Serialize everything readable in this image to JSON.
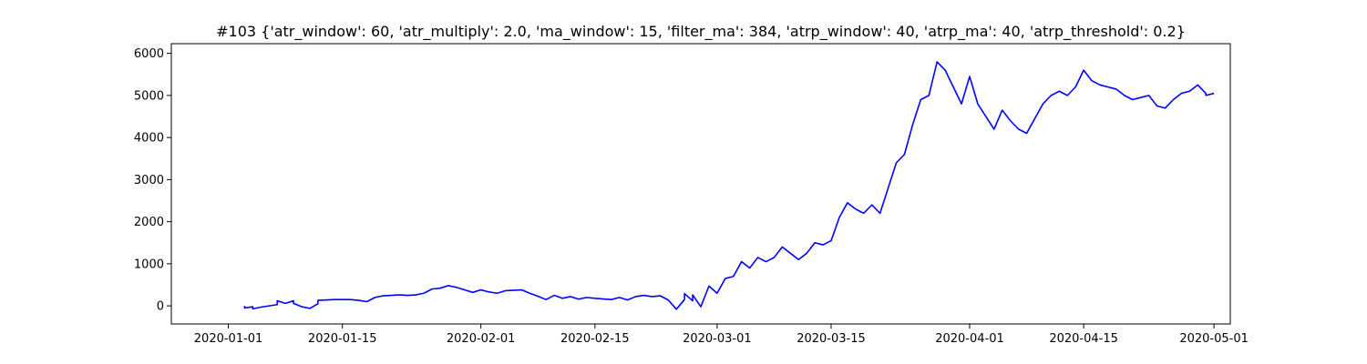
{
  "chart_data": {
    "type": "line",
    "title": "#103 {'atr_window': 60, 'atr_multiply': 2.0, 'ma_window': 15, 'filter_ma': 384, 'atrp_window': 40, 'atrp_ma': 40, 'atrp_threshold': 0.2}",
    "xlabel": "",
    "ylabel": "",
    "x_type": "date",
    "xlim": [
      "2019-12-25",
      "2020-05-03"
    ],
    "ylim": [
      -430,
      6230
    ],
    "grid": false,
    "x_ticks": [
      "2020-01-01",
      "2020-01-15",
      "2020-02-01",
      "2020-02-15",
      "2020-03-01",
      "2020-03-15",
      "2020-04-01",
      "2020-04-15",
      "2020-05-01"
    ],
    "y_ticks": [
      0,
      1000,
      2000,
      3000,
      4000,
      5000,
      6000
    ],
    "line_color": "#0000ff",
    "series": [
      {
        "points": [
          [
            "2020-01-03",
            0
          ],
          [
            "2020-01-03",
            -50
          ],
          [
            "2020-01-04",
            -20
          ],
          [
            "2020-01-04",
            -70
          ],
          [
            "2020-01-05",
            -30
          ],
          [
            "2020-01-07",
            30
          ],
          [
            "2020-01-07",
            120
          ],
          [
            "2020-01-08",
            60
          ],
          [
            "2020-01-09",
            120
          ],
          [
            "2020-01-09",
            60
          ],
          [
            "2020-01-10",
            -20
          ],
          [
            "2020-01-11",
            -60
          ],
          [
            "2020-01-12",
            50
          ],
          [
            "2020-01-12",
            130
          ],
          [
            "2020-01-14",
            150
          ],
          [
            "2020-01-16",
            150
          ],
          [
            "2020-01-17",
            130
          ],
          [
            "2020-01-18",
            100
          ],
          [
            "2020-01-19",
            200
          ],
          [
            "2020-01-20",
            240
          ],
          [
            "2020-01-21",
            250
          ],
          [
            "2020-01-22",
            260
          ],
          [
            "2020-01-23",
            250
          ],
          [
            "2020-01-24",
            260
          ],
          [
            "2020-01-25",
            300
          ],
          [
            "2020-01-26",
            400
          ],
          [
            "2020-01-27",
            420
          ],
          [
            "2020-01-28",
            480
          ],
          [
            "2020-01-29",
            440
          ],
          [
            "2020-01-30",
            380
          ],
          [
            "2020-01-31",
            320
          ],
          [
            "2020-02-01",
            380
          ],
          [
            "2020-02-02",
            330
          ],
          [
            "2020-02-03",
            300
          ],
          [
            "2020-02-04",
            360
          ],
          [
            "2020-02-06",
            380
          ],
          [
            "2020-02-07",
            300
          ],
          [
            "2020-02-08",
            230
          ],
          [
            "2020-02-09",
            150
          ],
          [
            "2020-02-10",
            250
          ],
          [
            "2020-02-11",
            180
          ],
          [
            "2020-02-12",
            220
          ],
          [
            "2020-02-13",
            160
          ],
          [
            "2020-02-14",
            200
          ],
          [
            "2020-02-15",
            180
          ],
          [
            "2020-02-17",
            150
          ],
          [
            "2020-02-18",
            200
          ],
          [
            "2020-02-19",
            140
          ],
          [
            "2020-02-20",
            220
          ],
          [
            "2020-02-21",
            250
          ],
          [
            "2020-02-22",
            220
          ],
          [
            "2020-02-23",
            240
          ],
          [
            "2020-02-24",
            140
          ],
          [
            "2020-02-25",
            -80
          ],
          [
            "2020-02-26",
            150
          ],
          [
            "2020-02-26",
            290
          ],
          [
            "2020-02-27",
            120
          ],
          [
            "2020-02-27",
            260
          ],
          [
            "2020-02-28",
            -20
          ],
          [
            "2020-02-29",
            470
          ],
          [
            "2020-03-01",
            300
          ],
          [
            "2020-03-02",
            650
          ],
          [
            "2020-03-03",
            700
          ],
          [
            "2020-03-04",
            1050
          ],
          [
            "2020-03-05",
            900
          ],
          [
            "2020-03-06",
            1150
          ],
          [
            "2020-03-07",
            1050
          ],
          [
            "2020-03-08",
            1150
          ],
          [
            "2020-03-09",
            1400
          ],
          [
            "2020-03-10",
            1250
          ],
          [
            "2020-03-11",
            1100
          ],
          [
            "2020-03-12",
            1250
          ],
          [
            "2020-03-13",
            1500
          ],
          [
            "2020-03-14",
            1450
          ],
          [
            "2020-03-15",
            1550
          ],
          [
            "2020-03-16",
            2100
          ],
          [
            "2020-03-17",
            2450
          ],
          [
            "2020-03-18",
            2300
          ],
          [
            "2020-03-19",
            2200
          ],
          [
            "2020-03-20",
            2400
          ],
          [
            "2020-03-21",
            2200
          ],
          [
            "2020-03-22",
            2800
          ],
          [
            "2020-03-23",
            3400
          ],
          [
            "2020-03-24",
            3600
          ],
          [
            "2020-03-25",
            4300
          ],
          [
            "2020-03-26",
            4900
          ],
          [
            "2020-03-27",
            5000
          ],
          [
            "2020-03-28",
            5800
          ],
          [
            "2020-03-29",
            5600
          ],
          [
            "2020-03-30",
            5200
          ],
          [
            "2020-03-31",
            4800
          ],
          [
            "2020-04-01",
            5450
          ],
          [
            "2020-04-02",
            4800
          ],
          [
            "2020-04-03",
            4500
          ],
          [
            "2020-04-04",
            4200
          ],
          [
            "2020-04-05",
            4650
          ],
          [
            "2020-04-06",
            4400
          ],
          [
            "2020-04-07",
            4200
          ],
          [
            "2020-04-08",
            4100
          ],
          [
            "2020-04-09",
            4450
          ],
          [
            "2020-04-10",
            4800
          ],
          [
            "2020-04-11",
            5000
          ],
          [
            "2020-04-12",
            5100
          ],
          [
            "2020-04-13",
            5000
          ],
          [
            "2020-04-14",
            5200
          ],
          [
            "2020-04-15",
            5600
          ],
          [
            "2020-04-16",
            5350
          ],
          [
            "2020-04-17",
            5250
          ],
          [
            "2020-04-18",
            5200
          ],
          [
            "2020-04-19",
            5150
          ],
          [
            "2020-04-20",
            5000
          ],
          [
            "2020-04-21",
            4900
          ],
          [
            "2020-04-22",
            4950
          ],
          [
            "2020-04-23",
            5000
          ],
          [
            "2020-04-24",
            4750
          ],
          [
            "2020-04-25",
            4700
          ],
          [
            "2020-04-26",
            4900
          ],
          [
            "2020-04-27",
            5050
          ],
          [
            "2020-04-28",
            5100
          ],
          [
            "2020-04-29",
            5250
          ],
          [
            "2020-04-30",
            5050
          ],
          [
            "2020-04-30",
            5000
          ],
          [
            "2020-05-01",
            5050
          ]
        ]
      }
    ]
  }
}
